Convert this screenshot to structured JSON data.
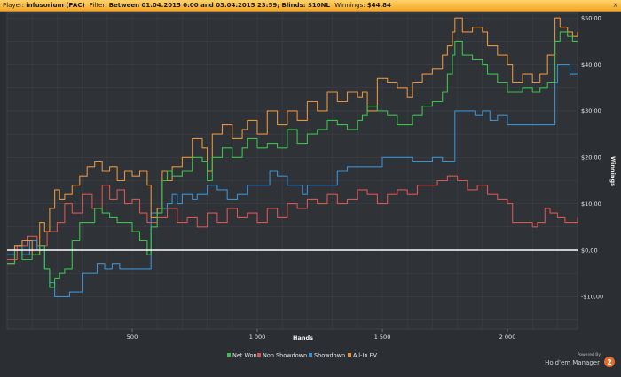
{
  "header": {
    "player_label": "Player:",
    "player": "infusorium (PAC)",
    "filter_label": "Filter:",
    "filter": "Between 01.04.2015 0:00 and 03.04.2015 23:59; Blinds: $10NL",
    "winnings_label": "Winnings:",
    "winnings": "$44,84",
    "close": "x"
  },
  "branding": {
    "powered_by": "Powered By",
    "name": "Hold'em Manager",
    "version": "2"
  },
  "chart_data": {
    "type": "line",
    "title": "",
    "xlabel": "Hands",
    "ylabel": "Winnings",
    "xlim": [
      0,
      2280
    ],
    "ylim": [
      -17,
      51
    ],
    "grid": true,
    "legend_position": "bottom-center",
    "x_ticks": [
      {
        "value": 500,
        "label": "500"
      },
      {
        "value": 1000,
        "label": "1 000"
      },
      {
        "value": 1500,
        "label": "1 500"
      },
      {
        "value": 2000,
        "label": "2 000"
      }
    ],
    "y_ticks": [
      {
        "value": 50,
        "label": "$50,00"
      },
      {
        "value": 40,
        "label": "$40,00"
      },
      {
        "value": 30,
        "label": "$30,00"
      },
      {
        "value": 20,
        "label": "$20,00"
      },
      {
        "value": 10,
        "label": "$10,00"
      },
      {
        "value": 0,
        "label": "$0,00"
      },
      {
        "value": -10,
        "label": "-$10,00"
      }
    ],
    "series": [
      {
        "name": "Non Showdown",
        "color": "#d9534f",
        "points": [
          [
            0,
            -2
          ],
          [
            40,
            1
          ],
          [
            80,
            3
          ],
          [
            120,
            1
          ],
          [
            160,
            4
          ],
          [
            200,
            6
          ],
          [
            230,
            10
          ],
          [
            260,
            8
          ],
          [
            300,
            12
          ],
          [
            340,
            9
          ],
          [
            380,
            14
          ],
          [
            410,
            11
          ],
          [
            440,
            13
          ],
          [
            470,
            10
          ],
          [
            500,
            11
          ],
          [
            530,
            8
          ],
          [
            560,
            6
          ],
          [
            600,
            7
          ],
          [
            640,
            9
          ],
          [
            680,
            6
          ],
          [
            720,
            7
          ],
          [
            760,
            5
          ],
          [
            800,
            8
          ],
          [
            840,
            6
          ],
          [
            880,
            9
          ],
          [
            920,
            7
          ],
          [
            960,
            8
          ],
          [
            1000,
            6
          ],
          [
            1040,
            9
          ],
          [
            1080,
            7
          ],
          [
            1120,
            10
          ],
          [
            1160,
            9
          ],
          [
            1200,
            11
          ],
          [
            1240,
            10
          ],
          [
            1280,
            12
          ],
          [
            1320,
            10
          ],
          [
            1360,
            11
          ],
          [
            1400,
            13
          ],
          [
            1440,
            12
          ],
          [
            1480,
            10
          ],
          [
            1520,
            12
          ],
          [
            1560,
            13
          ],
          [
            1600,
            12
          ],
          [
            1640,
            14
          ],
          [
            1680,
            14
          ],
          [
            1720,
            15
          ],
          [
            1760,
            16
          ],
          [
            1800,
            15
          ],
          [
            1840,
            13
          ],
          [
            1880,
            14
          ],
          [
            1920,
            12
          ],
          [
            1960,
            11
          ],
          [
            2000,
            10
          ],
          [
            2020,
            6
          ],
          [
            2060,
            6
          ],
          [
            2100,
            5
          ],
          [
            2120,
            6
          ],
          [
            2150,
            9
          ],
          [
            2170,
            8
          ],
          [
            2200,
            7
          ],
          [
            2230,
            6
          ],
          [
            2260,
            6
          ],
          [
            2280,
            7
          ]
        ]
      },
      {
        "name": "Showdown",
        "color": "#3a8fd1",
        "points": [
          [
            0,
            -1
          ],
          [
            30,
            1
          ],
          [
            60,
            -1
          ],
          [
            90,
            2
          ],
          [
            120,
            0
          ],
          [
            150,
            -4
          ],
          [
            170,
            -7
          ],
          [
            190,
            -10
          ],
          [
            220,
            -10
          ],
          [
            250,
            -9
          ],
          [
            280,
            -9
          ],
          [
            300,
            -5
          ],
          [
            330,
            -5
          ],
          [
            360,
            -3
          ],
          [
            390,
            -4
          ],
          [
            420,
            -3
          ],
          [
            450,
            -4
          ],
          [
            480,
            -4
          ],
          [
            520,
            -4
          ],
          [
            550,
            -4
          ],
          [
            570,
            -4
          ],
          [
            575,
            8
          ],
          [
            600,
            9
          ],
          [
            640,
            10
          ],
          [
            660,
            12
          ],
          [
            680,
            10
          ],
          [
            700,
            12
          ],
          [
            740,
            11
          ],
          [
            760,
            12
          ],
          [
            800,
            14
          ],
          [
            840,
            13
          ],
          [
            880,
            11
          ],
          [
            920,
            12
          ],
          [
            960,
            14
          ],
          [
            1000,
            14
          ],
          [
            1040,
            14
          ],
          [
            1050,
            17
          ],
          [
            1080,
            16
          ],
          [
            1120,
            14
          ],
          [
            1150,
            14
          ],
          [
            1180,
            12
          ],
          [
            1200,
            14
          ],
          [
            1240,
            14
          ],
          [
            1280,
            14
          ],
          [
            1320,
            17
          ],
          [
            1360,
            18
          ],
          [
            1400,
            18
          ],
          [
            1440,
            18
          ],
          [
            1480,
            18
          ],
          [
            1500,
            20
          ],
          [
            1540,
            20
          ],
          [
            1580,
            20
          ],
          [
            1620,
            19
          ],
          [
            1660,
            19
          ],
          [
            1700,
            20
          ],
          [
            1740,
            19
          ],
          [
            1780,
            19
          ],
          [
            1790,
            30
          ],
          [
            1830,
            30
          ],
          [
            1870,
            29
          ],
          [
            1900,
            30
          ],
          [
            1930,
            28
          ],
          [
            1960,
            29
          ],
          [
            2000,
            27
          ],
          [
            2060,
            27
          ],
          [
            2120,
            27
          ],
          [
            2170,
            27
          ],
          [
            2190,
            36
          ],
          [
            2200,
            40
          ],
          [
            2240,
            40
          ],
          [
            2250,
            38
          ],
          [
            2280,
            38
          ]
        ]
      },
      {
        "name": "All-In EV",
        "color": "#e8923a",
        "points": [
          [
            0,
            -3
          ],
          [
            30,
            1
          ],
          [
            60,
            2
          ],
          [
            100,
            -1
          ],
          [
            130,
            6
          ],
          [
            150,
            4
          ],
          [
            170,
            9
          ],
          [
            190,
            13
          ],
          [
            210,
            11
          ],
          [
            230,
            12
          ],
          [
            260,
            14
          ],
          [
            290,
            16
          ],
          [
            320,
            18
          ],
          [
            350,
            19
          ],
          [
            380,
            17
          ],
          [
            410,
            18
          ],
          [
            440,
            15
          ],
          [
            470,
            17
          ],
          [
            500,
            16
          ],
          [
            530,
            17
          ],
          [
            560,
            14
          ],
          [
            575,
            7
          ],
          [
            600,
            9
          ],
          [
            620,
            17
          ],
          [
            640,
            15
          ],
          [
            660,
            18
          ],
          [
            700,
            20
          ],
          [
            740,
            24
          ],
          [
            780,
            22
          ],
          [
            800,
            17
          ],
          [
            820,
            25
          ],
          [
            860,
            27
          ],
          [
            900,
            24
          ],
          [
            940,
            26
          ],
          [
            960,
            28
          ],
          [
            1000,
            25
          ],
          [
            1040,
            30
          ],
          [
            1080,
            27
          ],
          [
            1120,
            30
          ],
          [
            1160,
            28
          ],
          [
            1200,
            32
          ],
          [
            1240,
            30
          ],
          [
            1280,
            34
          ],
          [
            1320,
            32
          ],
          [
            1360,
            34
          ],
          [
            1400,
            33
          ],
          [
            1420,
            34
          ],
          [
            1440,
            30
          ],
          [
            1480,
            37
          ],
          [
            1520,
            36
          ],
          [
            1560,
            35
          ],
          [
            1600,
            33
          ],
          [
            1620,
            36
          ],
          [
            1660,
            38
          ],
          [
            1700,
            39
          ],
          [
            1740,
            42
          ],
          [
            1760,
            44
          ],
          [
            1780,
            47
          ],
          [
            1790,
            50
          ],
          [
            1820,
            47
          ],
          [
            1860,
            48
          ],
          [
            1900,
            47
          ],
          [
            1920,
            44
          ],
          [
            1960,
            42
          ],
          [
            2000,
            40
          ],
          [
            2020,
            36
          ],
          [
            2060,
            38
          ],
          [
            2100,
            36
          ],
          [
            2130,
            38
          ],
          [
            2160,
            42
          ],
          [
            2190,
            50
          ],
          [
            2210,
            48
          ],
          [
            2240,
            47
          ],
          [
            2260,
            46
          ],
          [
            2280,
            47
          ]
        ]
      },
      {
        "name": "Net Won",
        "color": "#39c24a",
        "points": [
          [
            0,
            -3
          ],
          [
            30,
            0
          ],
          [
            60,
            -2
          ],
          [
            100,
            -1
          ],
          [
            130,
            1
          ],
          [
            150,
            -4
          ],
          [
            170,
            -8
          ],
          [
            190,
            -6
          ],
          [
            210,
            -5
          ],
          [
            230,
            -4
          ],
          [
            260,
            2
          ],
          [
            290,
            6
          ],
          [
            320,
            6
          ],
          [
            350,
            9
          ],
          [
            380,
            8
          ],
          [
            410,
            7
          ],
          [
            440,
            6
          ],
          [
            470,
            6
          ],
          [
            500,
            4
          ],
          [
            530,
            2
          ],
          [
            560,
            -1
          ],
          [
            575,
            5
          ],
          [
            600,
            8
          ],
          [
            620,
            15
          ],
          [
            640,
            17
          ],
          [
            660,
            16
          ],
          [
            700,
            17
          ],
          [
            740,
            20
          ],
          [
            780,
            19
          ],
          [
            800,
            15
          ],
          [
            820,
            20
          ],
          [
            860,
            22
          ],
          [
            900,
            20
          ],
          [
            940,
            22
          ],
          [
            960,
            24
          ],
          [
            1000,
            22
          ],
          [
            1040,
            23
          ],
          [
            1080,
            22
          ],
          [
            1120,
            26
          ],
          [
            1160,
            23
          ],
          [
            1200,
            25
          ],
          [
            1240,
            26
          ],
          [
            1280,
            28
          ],
          [
            1320,
            27
          ],
          [
            1360,
            26
          ],
          [
            1400,
            28
          ],
          [
            1420,
            29
          ],
          [
            1440,
            31
          ],
          [
            1480,
            30
          ],
          [
            1520,
            29
          ],
          [
            1560,
            27
          ],
          [
            1600,
            27
          ],
          [
            1620,
            29
          ],
          [
            1660,
            31
          ],
          [
            1700,
            32
          ],
          [
            1740,
            34
          ],
          [
            1760,
            38
          ],
          [
            1780,
            42
          ],
          [
            1790,
            45
          ],
          [
            1820,
            42
          ],
          [
            1860,
            41
          ],
          [
            1900,
            40
          ],
          [
            1920,
            38
          ],
          [
            1960,
            36
          ],
          [
            2000,
            34
          ],
          [
            2020,
            34
          ],
          [
            2060,
            35
          ],
          [
            2100,
            34
          ],
          [
            2130,
            35
          ],
          [
            2160,
            36
          ],
          [
            2190,
            45
          ],
          [
            2210,
            47
          ],
          [
            2240,
            46
          ],
          [
            2260,
            45
          ],
          [
            2280,
            45
          ]
        ]
      }
    ],
    "legend": [
      "Net Won",
      "Non Showdown",
      "Showdown",
      "All-In EV"
    ],
    "legend_colors": [
      "#39c24a",
      "#d9534f",
      "#3a8fd1",
      "#e8923a"
    ]
  }
}
